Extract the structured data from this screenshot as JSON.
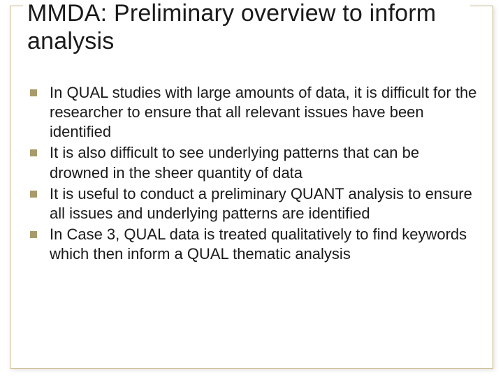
{
  "slide": {
    "title": "MMDA: Preliminary overview to inform analysis",
    "title_fontsize": 34,
    "title_color": "#1a1a1a",
    "border_color": "#c9b98a",
    "background_color": "#ffffff",
    "bullet_marker_color": "#a89a6a",
    "bullet_fontsize": 22,
    "bullet_text_color": "#1a1a1a",
    "bullets": [
      "In QUAL studies with large amounts of data, it is difficult for the researcher to ensure that all relevant issues have been identified",
      "It is also difficult to see underlying patterns that can be drowned in the sheer quantity of data",
      "It is useful to conduct a preliminary QUANT analysis to ensure all issues and underlying patterns are identified",
      "In Case 3, QUAL data is treated qualitatively to find keywords which then inform a QUAL thematic analysis"
    ]
  }
}
